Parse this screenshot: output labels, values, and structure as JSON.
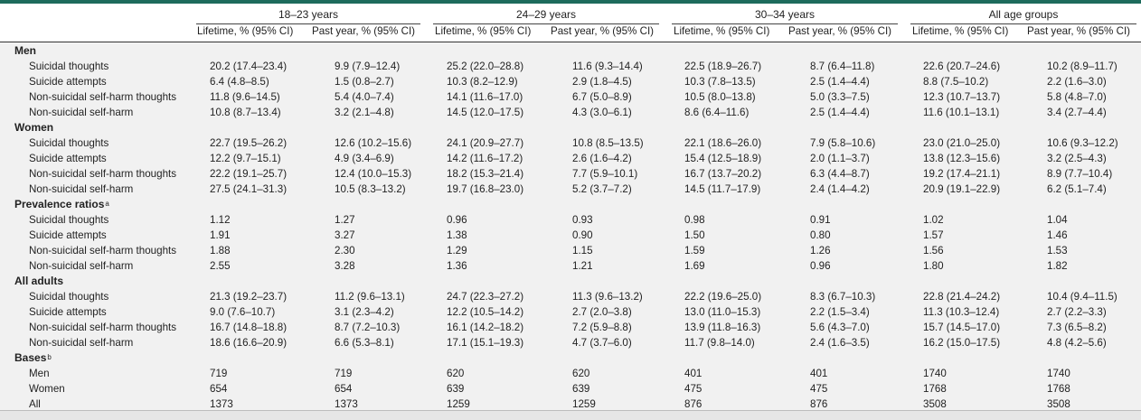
{
  "header": {
    "groups": [
      "18–23 years",
      "24–29 years",
      "30–34 years",
      "All age groups"
    ],
    "col_lifetime": "Lifetime, % (95% CI)",
    "col_past_year": "Past year, % (95% CI)"
  },
  "sections": [
    {
      "title": "Men",
      "sup": "",
      "rows": [
        {
          "label": "Suicidal thoughts",
          "values": [
            "20.2 (17.4–23.4)",
            "9.9 (7.9–12.4)",
            "25.2 (22.0–28.8)",
            "11.6 (9.3–14.4)",
            "22.5 (18.9–26.7)",
            "8.7 (6.4–11.8)",
            "22.6 (20.7–24.6)",
            "10.2 (8.9–11.7)"
          ]
        },
        {
          "label": "Suicide attempts",
          "values": [
            "6.4 (4.8–8.5)",
            "1.5 (0.8–2.7)",
            "10.3 (8.2–12.9)",
            "2.9 (1.8–4.5)",
            "10.3 (7.8–13.5)",
            "2.5 (1.4–4.4)",
            "8.8 (7.5–10.2)",
            "2.2 (1.6–3.0)"
          ]
        },
        {
          "label": "Non-suicidal self-harm thoughts",
          "values": [
            "11.8 (9.6–14.5)",
            "5.4 (4.0–7.4)",
            "14.1 (11.6–17.0)",
            "6.7 (5.0–8.9)",
            "10.5 (8.0–13.8)",
            "5.0 (3.3–7.5)",
            "12.3 (10.7–13.7)",
            "5.8 (4.8–7.0)"
          ]
        },
        {
          "label": "Non-suicidal self-harm",
          "values": [
            "10.8 (8.7–13.4)",
            "3.2 (2.1–4.8)",
            "14.5 (12.0–17.5)",
            "4.3 (3.0–6.1)",
            "8.6 (6.4–11.6)",
            "2.5 (1.4–4.4)",
            "11.6 (10.1–13.1)",
            "3.4 (2.7–4.4)"
          ]
        }
      ]
    },
    {
      "title": "Women",
      "sup": "",
      "rows": [
        {
          "label": "Suicidal thoughts",
          "values": [
            "22.7 (19.5–26.2)",
            "12.6 (10.2–15.6)",
            "24.1 (20.9–27.7)",
            "10.8 (8.5–13.5)",
            "22.1 (18.6–26.0)",
            "7.9 (5.8–10.6)",
            "23.0 (21.0–25.0)",
            "10.6 (9.3–12.2)"
          ]
        },
        {
          "label": "Suicide attempts",
          "values": [
            "12.2 (9.7–15.1)",
            "4.9 (3.4–6.9)",
            "14.2 (11.6–17.2)",
            "2.6 (1.6–4.2)",
            "15.4 (12.5–18.9)",
            "2.0 (1.1–3.7)",
            "13.8 (12.3–15.6)",
            "3.2 (2.5–4.3)"
          ]
        },
        {
          "label": "Non-suicidal self-harm thoughts",
          "values": [
            "22.2 (19.1–25.7)",
            "12.4 (10.0–15.3)",
            "18.2 (15.3–21.4)",
            "7.7 (5.9–10.1)",
            "16.7 (13.7–20.2)",
            "6.3 (4.4–8.7)",
            "19.2 (17.4–21.1)",
            "8.9 (7.7–10.4)"
          ]
        },
        {
          "label": "Non-suicidal self-harm",
          "values": [
            "27.5 (24.1–31.3)",
            "10.5 (8.3–13.2)",
            "19.7 (16.8–23.0)",
            "5.2 (3.7–7.2)",
            "14.5 (11.7–17.9)",
            "2.4 (1.4–4.2)",
            "20.9 (19.1–22.9)",
            "6.2 (5.1–7.4)"
          ]
        }
      ]
    },
    {
      "title": "Prevalence ratios",
      "sup": "a",
      "rows": [
        {
          "label": "Suicidal thoughts",
          "values": [
            "1.12",
            "1.27",
            "0.96",
            "0.93",
            "0.98",
            "0.91",
            "1.02",
            "1.04"
          ]
        },
        {
          "label": "Suicide attempts",
          "values": [
            "1.91",
            "3.27",
            "1.38",
            "0.90",
            "1.50",
            "0.80",
            "1.57",
            "1.46"
          ]
        },
        {
          "label": "Non-suicidal self-harm thoughts",
          "values": [
            "1.88",
            "2.30",
            "1.29",
            "1.15",
            "1.59",
            "1.26",
            "1.56",
            "1.53"
          ]
        },
        {
          "label": "Non-suicidal self-harm",
          "values": [
            "2.55",
            "3.28",
            "1.36",
            "1.21",
            "1.69",
            "0.96",
            "1.80",
            "1.82"
          ]
        }
      ]
    },
    {
      "title": "All adults",
      "sup": "",
      "rows": [
        {
          "label": "Suicidal thoughts",
          "values": [
            "21.3 (19.2–23.7)",
            "11.2 (9.6–13.1)",
            "24.7 (22.3–27.2)",
            "11.3 (9.6–13.2)",
            "22.2 (19.6–25.0)",
            "8.3 (6.7–10.3)",
            "22.8 (21.4–24.2)",
            "10.4 (9.4–11.5)"
          ]
        },
        {
          "label": "Suicide attempts",
          "values": [
            "9.0 (7.6–10.7)",
            "3.1 (2.3–4.2)",
            "12.2 (10.5–14.2)",
            "2.7 (2.0–3.8)",
            "13.0 (11.0–15.3)",
            "2.2 (1.5–3.4)",
            "11.3 (10.3–12.4)",
            "2.7 (2.2–3.3)"
          ]
        },
        {
          "label": "Non-suicidal self-harm thoughts",
          "values": [
            "16.7 (14.8–18.8)",
            "8.7 (7.2–10.3)",
            "16.1 (14.2–18.2)",
            "7.2 (5.9–8.8)",
            "13.9 (11.8–16.3)",
            "5.6 (4.3–7.0)",
            "15.7 (14.5–17.0)",
            "7.3 (6.5–8.2)"
          ]
        },
        {
          "label": "Non-suicidal self-harm",
          "values": [
            "18.6 (16.6–20.9)",
            "6.6 (5.3–8.1)",
            "17.1 (15.1–19.3)",
            "4.7 (3.7–6.0)",
            "11.7 (9.8–14.0)",
            "2.4 (1.6–3.5)",
            "16.2 (15.0–17.5)",
            "4.8 (4.2–5.6)"
          ]
        }
      ]
    },
    {
      "title": "Bases",
      "sup": "b",
      "rows": [
        {
          "label": "Men",
          "values": [
            "719",
            "719",
            "620",
            "620",
            "401",
            "401",
            "1740",
            "1740"
          ]
        },
        {
          "label": "Women",
          "values": [
            "654",
            "654",
            "639",
            "639",
            "475",
            "475",
            "1768",
            "1768"
          ]
        },
        {
          "label": "All",
          "values": [
            "1373",
            "1373",
            "1259",
            "1259",
            "876",
            "876",
            "3508",
            "3508"
          ]
        }
      ]
    }
  ]
}
